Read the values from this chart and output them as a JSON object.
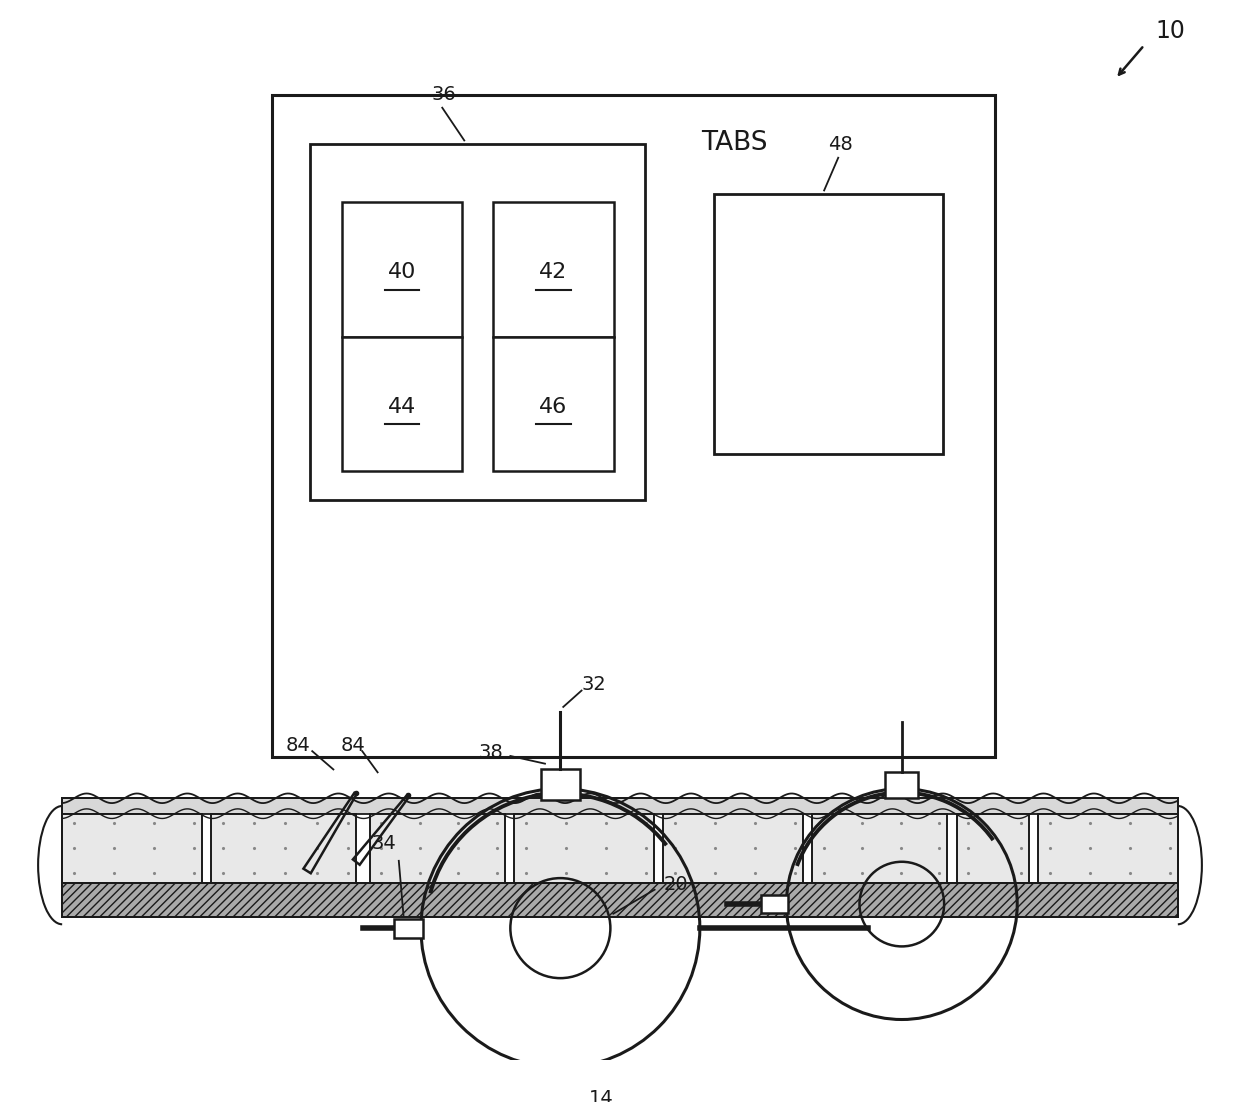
{
  "bg_color": "#ffffff",
  "line_color": "#1a1a1a",
  "fig_width": 12.4,
  "fig_height": 11.02,
  "dpi": 100,
  "label_10": "10",
  "label_36": "36",
  "label_48": "48",
  "label_tabs": "TABS",
  "label_40": "40",
  "label_42": "42",
  "label_44": "44",
  "label_46": "46",
  "label_32": "32",
  "label_38": "38",
  "label_34": "34",
  "label_20": "20",
  "label_14": "14",
  "label_84a": "84",
  "label_84b": "84"
}
